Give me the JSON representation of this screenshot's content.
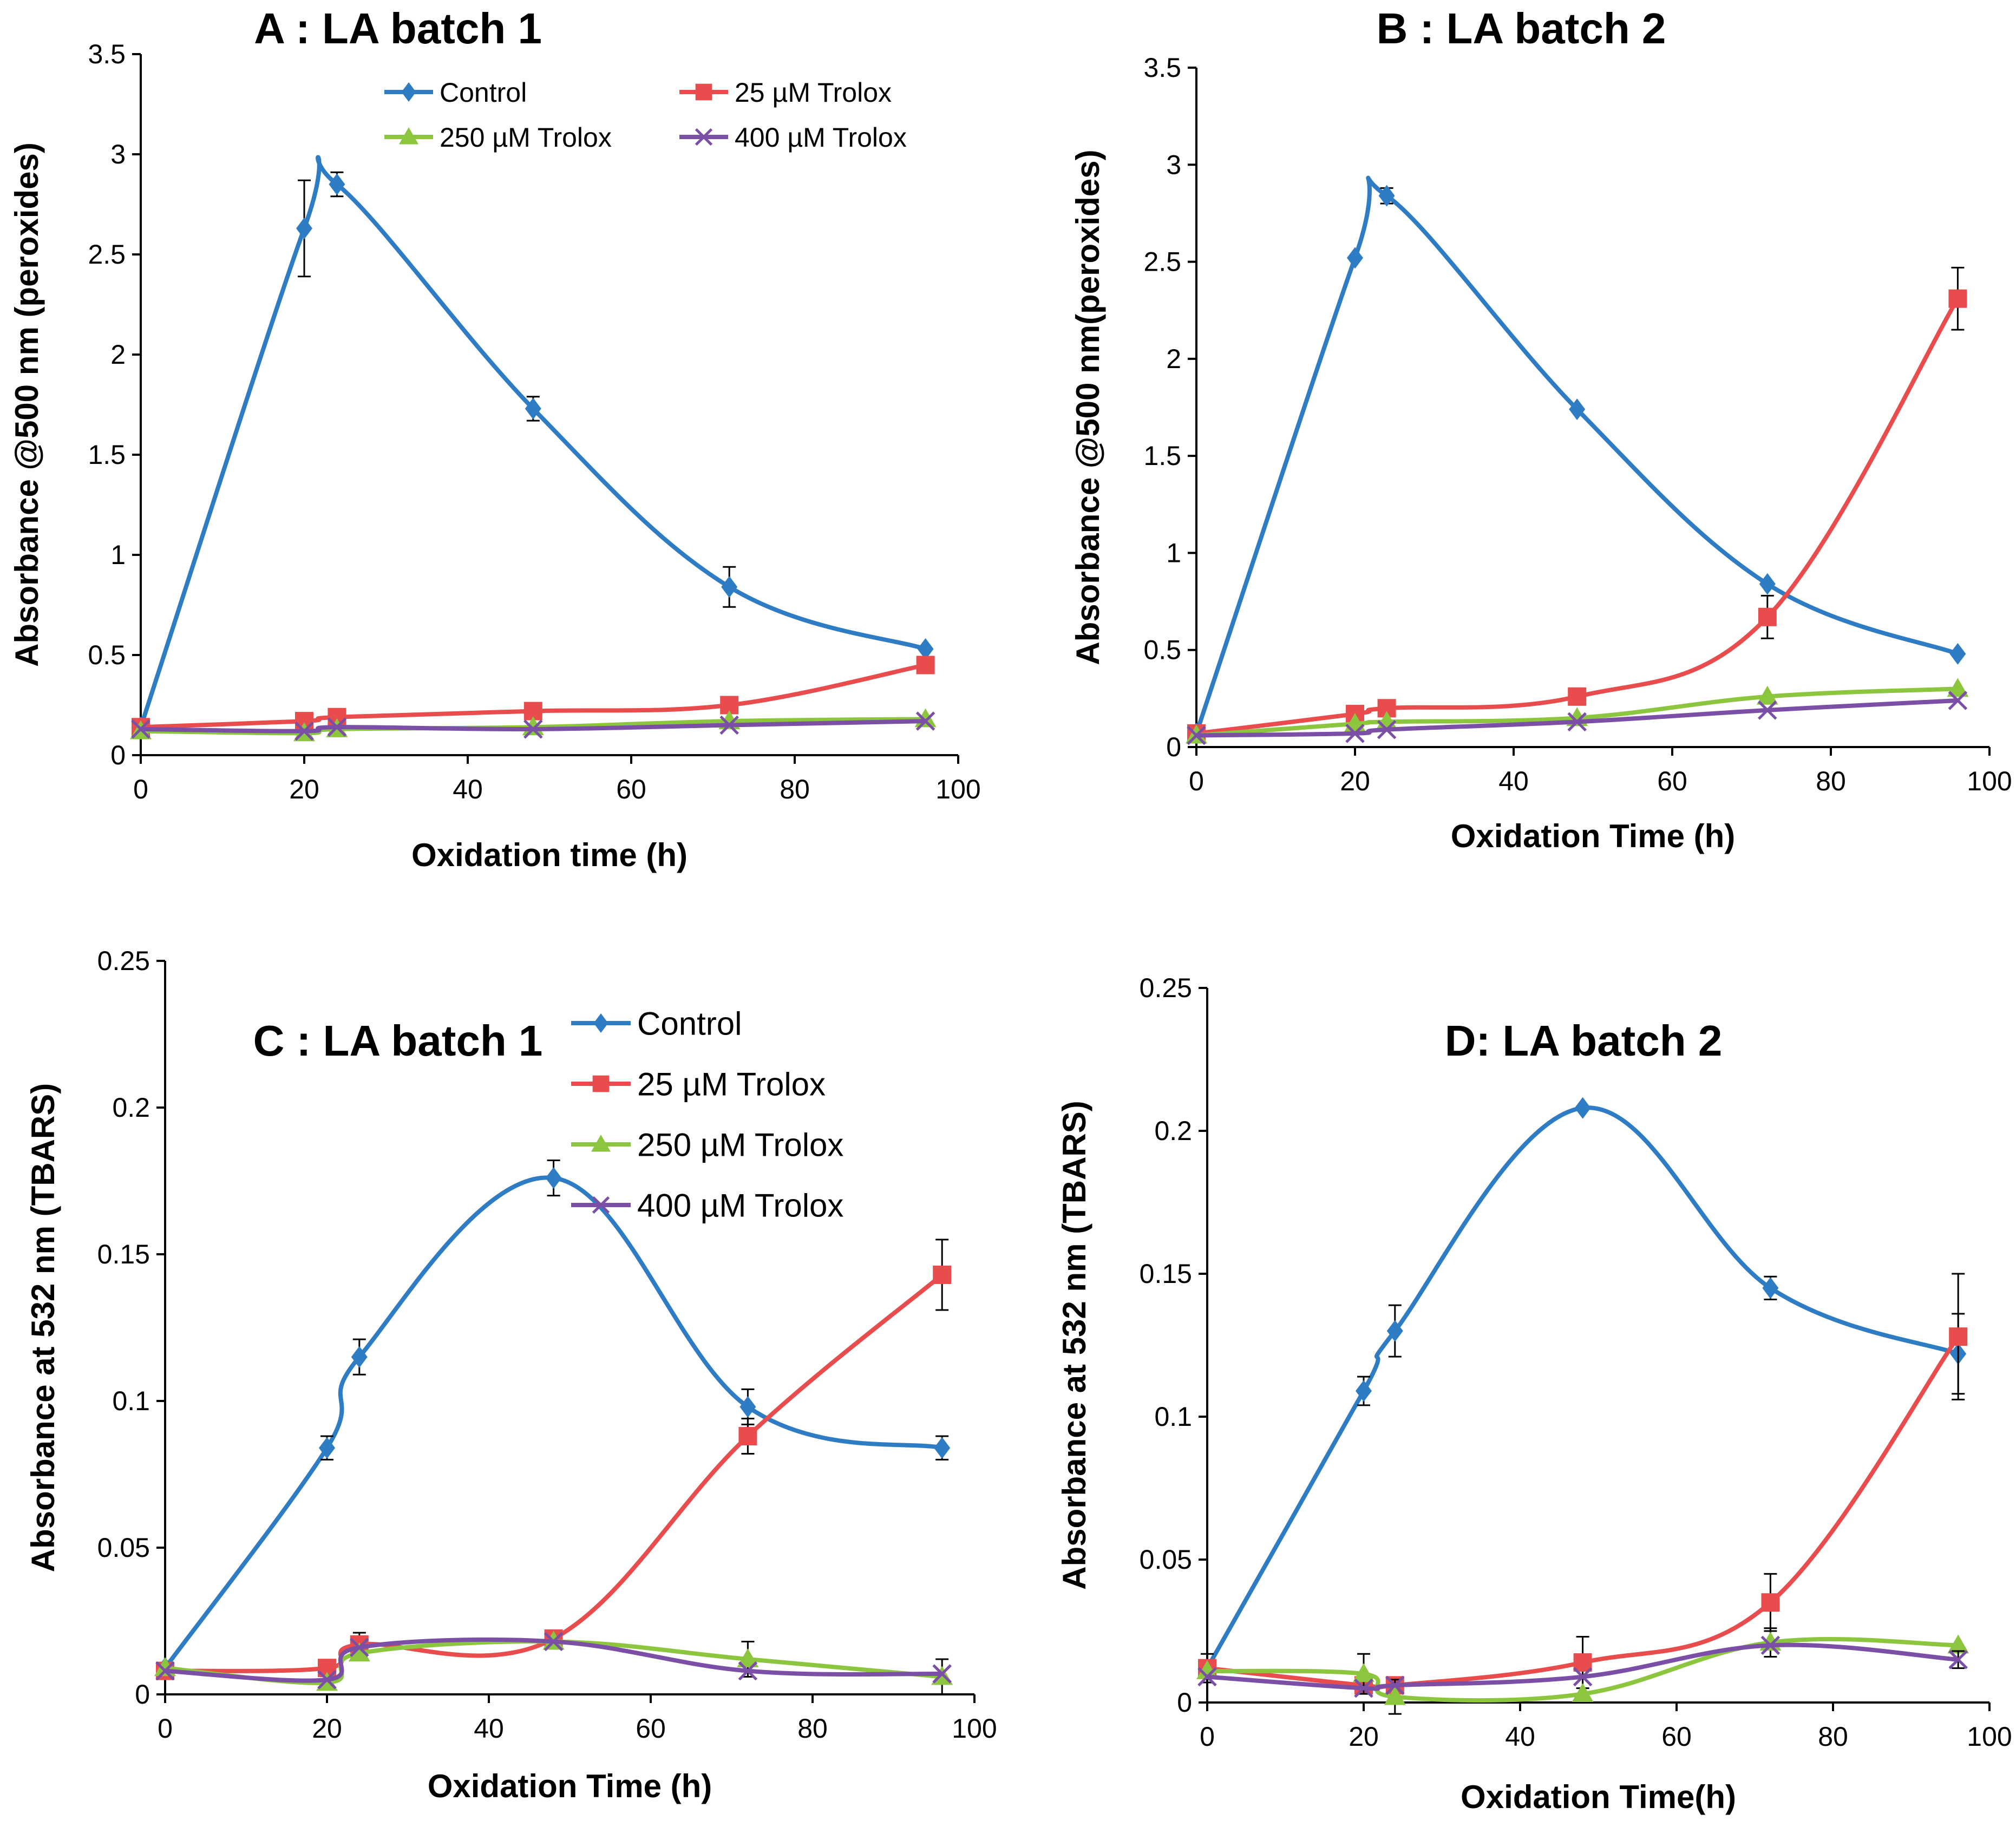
{
  "chart_data": [
    {
      "type": "line",
      "title": "A : LA batch 1",
      "xlabel": "Oxidation time (h)",
      "ylabel": "Absorbance @500 nm (peroxides)",
      "xlim": [
        0,
        100
      ],
      "ylim": [
        0,
        3.5
      ],
      "xticks": [
        "0",
        "20",
        "40",
        "60",
        "80",
        "100"
      ],
      "yticks": [
        "0",
        "0.5",
        "1",
        "1.5",
        "2",
        "2.5",
        "3",
        "3.5"
      ],
      "legend_position": "top-right",
      "x": [
        0,
        20,
        24,
        48,
        72,
        96
      ],
      "series": [
        {
          "name": "Control",
          "color": "#2e7cc4",
          "marker": "diamond",
          "values": [
            0.14,
            2.63,
            2.85,
            1.73,
            0.84,
            0.53
          ],
          "errors": [
            0,
            0.24,
            0.06,
            0.06,
            0.1,
            0
          ]
        },
        {
          "name": "25 µM Trolox",
          "color": "#e84c4c",
          "marker": "square",
          "values": [
            0.14,
            0.17,
            0.19,
            0.22,
            0.25,
            0.45
          ],
          "errors": [
            0,
            0,
            0,
            0,
            0,
            0
          ]
        },
        {
          "name": "250 µM Trolox",
          "color": "#8cc63f",
          "marker": "triangle",
          "values": [
            0.12,
            0.11,
            0.13,
            0.14,
            0.17,
            0.18
          ],
          "errors": [
            0,
            0,
            0,
            0,
            0,
            0
          ]
        },
        {
          "name": "400 µM Trolox",
          "color": "#7b4fa6",
          "marker": "cross",
          "values": [
            0.13,
            0.12,
            0.14,
            0.13,
            0.15,
            0.17
          ],
          "errors": [
            0,
            0,
            0,
            0,
            0,
            0
          ]
        }
      ]
    },
    {
      "type": "line",
      "title": "B : LA batch 2",
      "xlabel": "Oxidation Time (h)",
      "ylabel": "Absorbance @500 nm(peroxides)",
      "xlim": [
        0,
        100
      ],
      "ylim": [
        0,
        3.5
      ],
      "xticks": [
        "0",
        "20",
        "40",
        "60",
        "80",
        "100"
      ],
      "yticks": [
        "0",
        "0.5",
        "1",
        "1.5",
        "2",
        "2.5",
        "3",
        "3.5"
      ],
      "legend_position": "none",
      "x": [
        0,
        20,
        24,
        48,
        72,
        96
      ],
      "series": [
        {
          "name": "Control",
          "color": "#2e7cc4",
          "marker": "diamond",
          "values": [
            0.07,
            2.52,
            2.84,
            1.74,
            0.84,
            0.48
          ],
          "errors": [
            0,
            0,
            0.04,
            0,
            0,
            0
          ]
        },
        {
          "name": "25 µM Trolox",
          "color": "#e84c4c",
          "marker": "square",
          "values": [
            0.07,
            0.17,
            0.2,
            0.26,
            0.67,
            2.31
          ],
          "errors": [
            0,
            0,
            0,
            0,
            0.11,
            0.16
          ]
        },
        {
          "name": "250 µM Trolox",
          "color": "#8cc63f",
          "marker": "triangle",
          "values": [
            0.06,
            0.12,
            0.13,
            0.15,
            0.26,
            0.3
          ],
          "errors": [
            0,
            0,
            0,
            0,
            0,
            0
          ]
        },
        {
          "name": "400 µM Trolox",
          "color": "#7b4fa6",
          "marker": "cross",
          "values": [
            0.06,
            0.07,
            0.09,
            0.13,
            0.19,
            0.24
          ],
          "errors": [
            0,
            0,
            0,
            0,
            0,
            0
          ]
        }
      ]
    },
    {
      "type": "line",
      "title": "C : LA batch 1",
      "xlabel": "Oxidation Time (h)",
      "ylabel": "Absorbance at 532 nm (TBARS)",
      "xlim": [
        0,
        100
      ],
      "ylim": [
        0,
        0.25
      ],
      "xticks": [
        "0",
        "20",
        "40",
        "60",
        "80",
        "100"
      ],
      "yticks": [
        "0",
        "0.05",
        "0.1",
        "0.15",
        "0.2",
        "0.25"
      ],
      "legend_position": "top-right",
      "x": [
        0,
        20,
        24,
        48,
        72,
        96
      ],
      "series": [
        {
          "name": "Control",
          "color": "#2e7cc4",
          "marker": "diamond",
          "values": [
            0.009,
            0.084,
            0.115,
            0.176,
            0.098,
            0.084
          ],
          "errors": [
            0,
            0.004,
            0.006,
            0.006,
            0.006,
            0.004
          ]
        },
        {
          "name": "25 µM Trolox",
          "color": "#e84c4c",
          "marker": "square",
          "values": [
            0.008,
            0.009,
            0.017,
            0.019,
            0.088,
            0.143
          ],
          "errors": [
            0,
            0,
            0.004,
            0,
            0.006,
            0.012
          ]
        },
        {
          "name": "250 µM Trolox",
          "color": "#8cc63f",
          "marker": "triangle",
          "values": [
            0.009,
            0.004,
            0.014,
            0.018,
            0.012,
            0.006
          ],
          "errors": [
            0,
            0,
            0,
            0,
            0.006,
            0.006
          ]
        },
        {
          "name": "400 µM Trolox",
          "color": "#7b4fa6",
          "marker": "cross",
          "values": [
            0.008,
            0.005,
            0.016,
            0.018,
            0.008,
            0.007
          ],
          "errors": [
            0,
            0,
            0,
            0,
            0,
            0
          ]
        }
      ]
    },
    {
      "type": "line",
      "title": "D: LA batch 2",
      "xlabel": "Oxidation Time(h)",
      "ylabel": "Absorbance at 532 nm (TBARS)",
      "xlim": [
        0,
        100
      ],
      "ylim": [
        0,
        0.25
      ],
      "xticks": [
        "0",
        "20",
        "40",
        "60",
        "80",
        "100"
      ],
      "yticks": [
        "0",
        "0.05",
        "0.1",
        "0.15",
        "0.2",
        "0.25"
      ],
      "legend_position": "none",
      "x": [
        0,
        20,
        24,
        48,
        72,
        96
      ],
      "series": [
        {
          "name": "Control",
          "color": "#2e7cc4",
          "marker": "diamond",
          "values": [
            0.012,
            0.109,
            0.13,
            0.208,
            0.145,
            0.122
          ],
          "errors": [
            0,
            0.005,
            0.009,
            0,
            0.004,
            0.014
          ]
        },
        {
          "name": "25 µM Trolox",
          "color": "#e84c4c",
          "marker": "square",
          "values": [
            0.012,
            0.006,
            0.006,
            0.014,
            0.035,
            0.128
          ],
          "errors": [
            0.005,
            0,
            0,
            0.009,
            0.01,
            0.022
          ]
        },
        {
          "name": "250 µM Trolox",
          "color": "#8cc63f",
          "marker": "triangle",
          "values": [
            0.011,
            0.01,
            0.002,
            0.003,
            0.021,
            0.02
          ],
          "errors": [
            0,
            0.007,
            0.006,
            0,
            0.005,
            0
          ]
        },
        {
          "name": "400 µM Trolox",
          "color": "#7b4fa6",
          "marker": "cross",
          "values": [
            0.009,
            0.005,
            0.006,
            0.009,
            0.02,
            0.015
          ],
          "errors": [
            0,
            0,
            0,
            0,
            0,
            0.003
          ]
        }
      ]
    }
  ]
}
